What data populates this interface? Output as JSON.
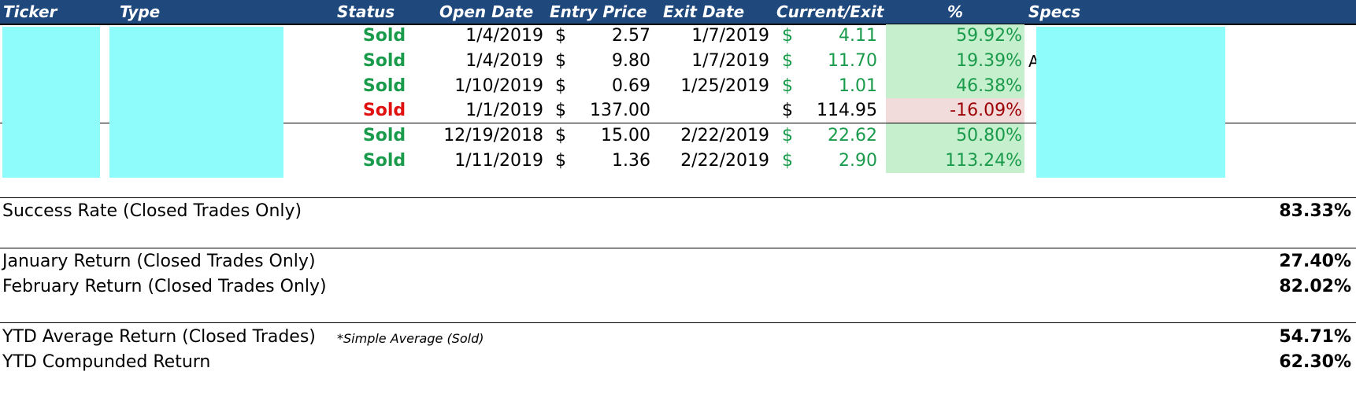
{
  "colors": {
    "header_bg": "#1f497d",
    "positive": "#1a9b4b",
    "negative": "#e01010",
    "positive_fill": "#c6efce",
    "negative_fill": "#f2dcdb",
    "redacted_fill": "#8ffcfc"
  },
  "headers": {
    "ticker": "Ticker",
    "type": "Type",
    "status": "Status",
    "open_date": "Open Date",
    "entry_price": "Entry Price",
    "exit_date": "Exit Date",
    "current_exit": "Current/Exit",
    "pct": "%",
    "specs": "Specs"
  },
  "rows": [
    {
      "status": "Sold",
      "open_date": "1/4/2019",
      "currency": "$",
      "entry": "2.57",
      "exit_date": "1/7/2019",
      "currency2": "$",
      "current": "4.11",
      "pct": "59.92%"
    },
    {
      "status": "Sold",
      "open_date": "1/4/2019",
      "currency": "$",
      "entry": "9.80",
      "exit_date": "1/7/2019",
      "currency2": "$",
      "current": "11.70",
      "pct": "19.39%"
    },
    {
      "status": "Sold",
      "open_date": "1/10/2019",
      "currency": "$",
      "entry": "0.69",
      "exit_date": "1/25/2019",
      "currency2": "$",
      "current": "1.01",
      "pct": "46.38%"
    },
    {
      "status": "Sold",
      "open_date": "1/1/2019",
      "currency": "$",
      "entry": "137.00",
      "exit_date": "",
      "currency2": "$",
      "current": "114.95",
      "pct": "-16.09%"
    },
    {
      "status": "Sold",
      "open_date": "12/19/2018",
      "currency": "$",
      "entry": "15.00",
      "exit_date": "2/22/2019",
      "currency2": "$",
      "current": "22.62",
      "pct": "50.80%"
    },
    {
      "status": "Sold",
      "open_date": "1/11/2019",
      "currency": "$",
      "entry": "1.36",
      "exit_date": "2/22/2019",
      "currency2": "$",
      "current": "2.90",
      "pct": "113.24%"
    }
  ],
  "stray_char": "A",
  "summary": {
    "success_rate_label": "Success Rate (Closed Trades Only)",
    "success_rate_value": "83.33%",
    "jan_label": "January Return (Closed Trades Only)",
    "jan_value": "27.40%",
    "feb_label": "February Return (Closed Trades Only)",
    "feb_value": "82.02%",
    "ytd_avg_label": "YTD Average Return (Closed Trades)",
    "ytd_avg_note": "*Simple Average (Sold)",
    "ytd_avg_value": "54.71%",
    "ytd_comp_label": "YTD Compunded Return",
    "ytd_comp_value": "62.30%"
  }
}
